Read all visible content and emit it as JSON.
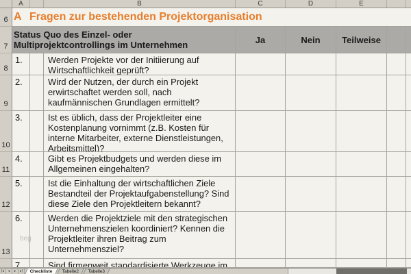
{
  "sheet": {
    "column_letters": {
      "a": "A",
      "b": "B",
      "c": "C",
      "d": "D",
      "e": "E"
    },
    "row_numbers": {
      "r6": "6",
      "r7": "7",
      "r8": "8",
      "r9": "9",
      "r10": "10",
      "r11": "11",
      "r12": "12",
      "r13": "13"
    },
    "title": {
      "prefix": "A",
      "text": "Fragen zur bestehenden Projektorganisation"
    },
    "header": {
      "question_label": "Status Quo des Einzel- oder\nMultiprojektcontrollings im Unternehmen",
      "answer_yes": "Ja",
      "answer_no": "Nein",
      "answer_partial": "Teilweise"
    },
    "questions": [
      {
        "num": "1.",
        "text": "Werden Projekte vor der Initiierung auf\nWirtschaftlichkeit geprüft?"
      },
      {
        "num": "2.",
        "text": "Wird der Nutzen, der durch ein Projekt\nerwirtschaftet werden soll, nach\nkaufmännischen Grundlagen ermittelt?"
      },
      {
        "num": "3.",
        "text": "Ist es üblich, dass der Projektleiter eine\nKostenplanung vornimmt (z.B. Kosten für\ninterne Mitarbeiter, externe Dienstleistungen,\nArbeitsmittel)?"
      },
      {
        "num": "4.",
        "text": "Gibt es Projektbudgets und werden diese im\nAllgemeinen eingehalten?"
      },
      {
        "num": "5.",
        "text": "Ist die Einhaltung der wirtschaftlichen Ziele\nBestandteil der Projektaufgabenstellung? Sind\ndiese Ziele den Projektleitern bekannt?"
      },
      {
        "num": "6.",
        "text": "Werden die Projektziele mit den strategischen\nUnternehmenszielen koordiniert? Kennen die\nProjektleiter ihren Beitrag zum\nUnternehmensziel?"
      },
      {
        "num": "7.",
        "text": "Sind firmenweit standardisierte Werkzeuge im"
      }
    ],
    "watermark": "beg"
  },
  "tabbar": {
    "nav": {
      "first": "|◂",
      "prev": "◂",
      "next": "▸",
      "last": "▸|"
    },
    "tabs": {
      "active": "Checkliste",
      "tab2": "Tabelle2",
      "tab3": "Tabelle3"
    }
  },
  "colors": {
    "title_orange": "#E67E2D",
    "header_gray": "#ACAAA7",
    "cell_background": "#F4F2EC",
    "chrome_background": "#D3CFC7",
    "gridline": "#A7A49D"
  }
}
